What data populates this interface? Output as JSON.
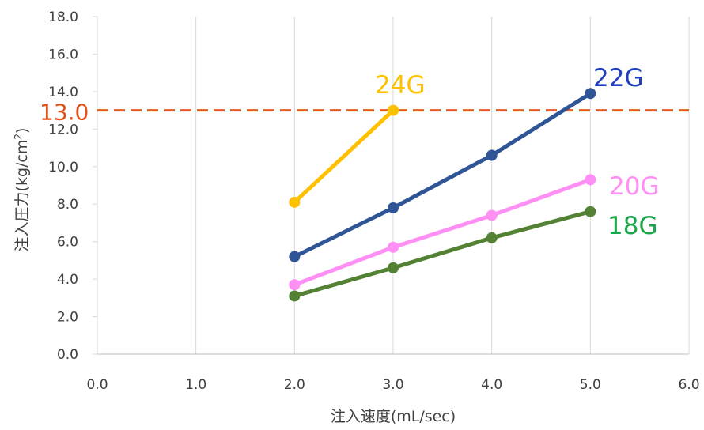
{
  "chart_data": {
    "type": "line",
    "xlabel": "注入速度(mL/sec)",
    "ylabel": "注入圧力(kg/cm",
    "ylabel_sup": "2",
    "ylabel_end": ")",
    "xlim": [
      0,
      6
    ],
    "ylim": [
      0,
      18
    ],
    "x_ticks": [
      "0.0",
      "1.0",
      "2.0",
      "3.0",
      "4.0",
      "5.0",
      "6.0"
    ],
    "y_ticks": [
      "0.0",
      "2.0",
      "4.0",
      "6.0",
      "8.0",
      "10.0",
      "12.0",
      "14.0",
      "16.0",
      "18.0"
    ],
    "grid": "vertical",
    "series": [
      {
        "name": "24G",
        "color": "#FFC000",
        "x": [
          2.0,
          3.0
        ],
        "y": [
          8.1,
          13.0
        ]
      },
      {
        "name": "22G",
        "color": "#2F5597",
        "x": [
          2.0,
          3.0,
          4.0,
          5.0
        ],
        "y": [
          5.2,
          7.8,
          10.6,
          13.9
        ]
      },
      {
        "name": "20G",
        "color": "#FF8FF4",
        "x": [
          2.0,
          3.0,
          4.0,
          5.0
        ],
        "y": [
          3.7,
          5.7,
          7.4,
          9.3
        ]
      },
      {
        "name": "18G",
        "color": "#548235",
        "x": [
          2.0,
          3.0,
          4.0,
          5.0
        ],
        "y": [
          3.1,
          4.6,
          6.2,
          7.6
        ]
      }
    ],
    "reference_line": {
      "y": 13.0,
      "label": "13.0",
      "color": "#E85A1F",
      "style": "dashed"
    },
    "label_colors": {
      "24G": "#FFC000",
      "22G": "#1F3FBF",
      "20G": "#FF8FF4",
      "18G": "#19A84A",
      "13.0": "#E0521A"
    }
  }
}
